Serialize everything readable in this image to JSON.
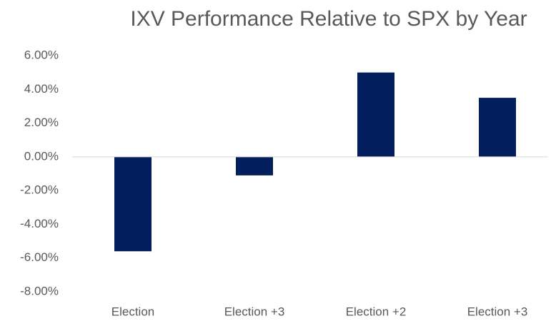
{
  "chart_data": {
    "type": "bar",
    "title": "IXV Performance Relative to SPX by Year",
    "categories": [
      "Election",
      "Election +3",
      "Election +2",
      "Election +3"
    ],
    "values": [
      -5.6,
      -1.1,
      5.0,
      3.5
    ],
    "color": "#021e5c",
    "ylim": [
      -8,
      6
    ],
    "yticks": [
      {
        "value": -8,
        "label": "-8.00%"
      },
      {
        "value": -6,
        "label": "-6.00%"
      },
      {
        "value": -4,
        "label": "-4.00%"
      },
      {
        "value": -2,
        "label": "-2.00%"
      },
      {
        "value": 0,
        "label": "0.00%"
      },
      {
        "value": 2,
        "label": "2.00%"
      },
      {
        "value": 4,
        "label": "4.00%"
      },
      {
        "value": 6,
        "label": "6.00%"
      }
    ],
    "grid": false
  }
}
